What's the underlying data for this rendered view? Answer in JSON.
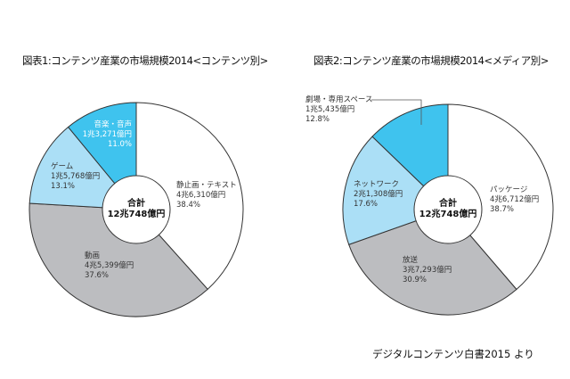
{
  "chart_data": [
    {
      "type": "pie",
      "title": "図表1:コンテンツ産業の市場規模2014<コンテンツ別>",
      "center_label": {
        "line1": "合計",
        "line2": "12兆748億円"
      },
      "slices": [
        {
          "name": "静止画・テキスト",
          "amount": "4兆6,310億円",
          "percent": 38.4,
          "percent_label": "38.4%",
          "color": "#ffffff"
        },
        {
          "name": "動画",
          "amount": "4兆5,399億円",
          "percent": 37.6,
          "percent_label": "37.6%",
          "color": "#bcbdc0"
        },
        {
          "name": "ゲーム",
          "amount": "1兆5,768億円",
          "percent": 13.1,
          "percent_label": "13.1%",
          "color": "#abdff6"
        },
        {
          "name": "音楽・音声",
          "amount": "1兆3,271億円",
          "percent": 11.0,
          "percent_label": "11.0%",
          "color": "#3fc3ee"
        }
      ]
    },
    {
      "type": "pie",
      "title": "図表2:コンテンツ産業の市場規模2014<メディア別>",
      "center_label": {
        "line1": "合計",
        "line2": "12兆748億円"
      },
      "slices": [
        {
          "name": "パッケージ",
          "amount": "4兆6,712億円",
          "percent": 38.7,
          "percent_label": "38.7%",
          "color": "#ffffff"
        },
        {
          "name": "放送",
          "amount": "3兆7,293億円",
          "percent": 30.9,
          "percent_label": "30.9%",
          "color": "#bcbdc0"
        },
        {
          "name": "ネットワーク",
          "amount": "2兆1,308億円",
          "percent": 17.6,
          "percent_label": "17.6%",
          "color": "#abdff6"
        },
        {
          "name": "劇場・専用スペース",
          "amount": "1兆5,435億円",
          "percent": 12.8,
          "percent_label": "12.8%",
          "color": "#3fc3ee"
        }
      ]
    }
  ],
  "source": "デジタルコンテンツ白書2015 より"
}
